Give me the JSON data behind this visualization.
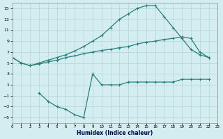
{
  "bg_color": "#d4edf0",
  "grid_color": "#c0dce0",
  "line_color": "#2a7d7d",
  "xlabel": "Humidex (Indice chaleur)",
  "xlim": [
    0,
    23
  ],
  "ylim": [
    -6,
    16
  ],
  "xticks": [
    0,
    1,
    2,
    3,
    4,
    5,
    6,
    7,
    8,
    9,
    10,
    11,
    12,
    13,
    14,
    15,
    16,
    17,
    18,
    19,
    20,
    21,
    22,
    23
  ],
  "yticks": [
    -5,
    -3,
    -1,
    1,
    3,
    5,
    7,
    9,
    11,
    13,
    15
  ],
  "curve1_x": [
    0,
    1,
    2,
    3,
    4,
    5,
    6,
    7,
    8,
    9,
    10,
    11,
    12,
    13,
    14,
    15,
    16,
    17,
    18,
    19,
    20,
    21,
    22
  ],
  "curve1_y": [
    6,
    5,
    4.5,
    5.0,
    5.5,
    6.0,
    6.5,
    7.2,
    8.0,
    9.0,
    10.0,
    11.5,
    13.0,
    14.0,
    15.0,
    15.5,
    15.5,
    13.5,
    11.5,
    9.5,
    7.5,
    6.5,
    6.0
  ],
  "curve2_x": [
    0,
    1,
    2,
    3,
    4,
    5,
    6,
    7,
    8,
    9,
    10,
    11,
    12,
    13,
    14,
    15,
    16,
    17,
    18,
    19,
    20,
    21,
    22
  ],
  "curve2_y": [
    6,
    5,
    4.5,
    4.8,
    5.2,
    5.5,
    6.0,
    6.3,
    6.7,
    7.0,
    7.3,
    7.5,
    7.8,
    8.0,
    8.5,
    8.8,
    9.0,
    9.3,
    9.5,
    9.8,
    9.5,
    7.0,
    6.0
  ],
  "curve3_x": [
    3,
    4,
    5,
    6,
    7,
    8,
    9,
    10,
    11,
    12,
    13,
    14,
    15,
    16,
    17,
    18,
    19,
    20,
    21,
    22
  ],
  "curve3_y": [
    -0.5,
    -2.0,
    -3.0,
    -3.5,
    -4.5,
    -5.0,
    3.0,
    1.0,
    1.0,
    1.0,
    1.5,
    1.5,
    1.5,
    1.5,
    1.5,
    1.5,
    2.0,
    2.0,
    2.0,
    2.0
  ]
}
